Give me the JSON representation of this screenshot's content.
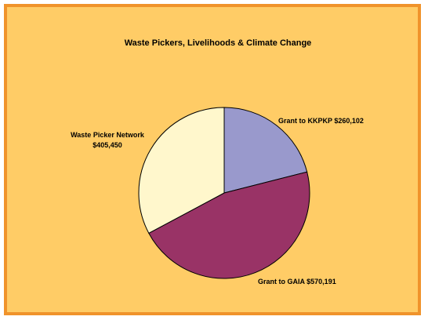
{
  "chart_data": {
    "type": "pie",
    "title": "Waste Pickers, Livelihoods & Climate Change",
    "start_angle_deg": 0,
    "direction": "clockwise",
    "slices": [
      {
        "name": "Grant to KKPKP",
        "value": 260102,
        "value_label": "$260,102",
        "label": "Grant to KKPKP  $260,102",
        "color": "#9999cc"
      },
      {
        "name": "Grant to GAIA",
        "value": 570191,
        "value_label": "$570,191",
        "label": "Grant to GAIA  $570,191",
        "color": "#993366"
      },
      {
        "name": "Waste Picker Network",
        "value": 405450,
        "value_label": "$405,450",
        "label": "Waste Picker Network",
        "color": "#fff7cc"
      }
    ],
    "colors": {
      "background": "#ffcc66",
      "border": "#f0932b",
      "slice_outline": "#000000"
    }
  }
}
